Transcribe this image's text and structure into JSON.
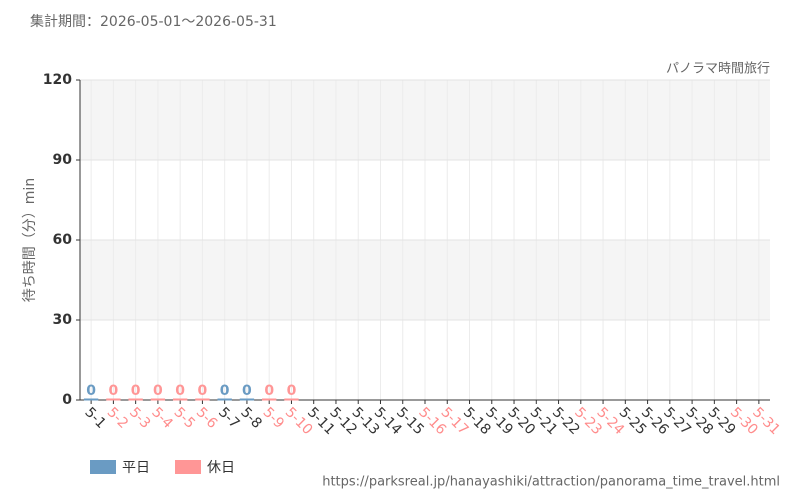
{
  "chart_data": {
    "type": "bar",
    "title": "集計期間：2026-05-01～2026-05-31",
    "subtitle": "パノラマ時間旅行",
    "y_label": "待ち時間（分）min",
    "source": "https://parksreal.jp/hanayashiki/attraction/panorama_time_travel.html",
    "categories": [
      "5-1",
      "5-2",
      "5-3",
      "5-4",
      "5-5",
      "5-6",
      "5-7",
      "5-8",
      "5-9",
      "5-10",
      "5-11",
      "5-12",
      "5-13",
      "5-14",
      "5-15",
      "5-16",
      "5-17",
      "5-18",
      "5-19",
      "5-20",
      "5-21",
      "5-22",
      "5-23",
      "5-24",
      "5-25",
      "5-26",
      "5-27",
      "5-28",
      "5-29",
      "5-30",
      "5-31"
    ],
    "category_colors": [
      "#333333",
      "#ff8c8c",
      "#ff8c8c",
      "#ff8c8c",
      "#ff8c8c",
      "#ff8c8c",
      "#333333",
      "#333333",
      "#ff8c8c",
      "#ff8c8c",
      "#333333",
      "#333333",
      "#333333",
      "#333333",
      "#333333",
      "#ff8c8c",
      "#ff8c8c",
      "#333333",
      "#333333",
      "#333333",
      "#333333",
      "#333333",
      "#ff8c8c",
      "#ff8c8c",
      "#333333",
      "#333333",
      "#333333",
      "#333333",
      "#333333",
      "#ff8c8c",
      "#ff8c8c"
    ],
    "series": [
      {
        "name": "平日",
        "color": "#6a9bc3",
        "values": [
          0,
          null,
          null,
          null,
          null,
          null,
          0,
          0,
          null,
          null,
          null,
          null,
          null,
          null,
          null,
          null,
          null,
          null,
          null,
          null,
          null,
          null,
          null,
          null,
          null,
          null,
          null,
          null,
          null,
          null,
          null
        ]
      },
      {
        "name": "休日",
        "color": "#ff9696",
        "values": [
          null,
          0,
          0,
          0,
          0,
          0,
          null,
          null,
          0,
          0,
          null,
          null,
          null,
          null,
          null,
          null,
          null,
          null,
          null,
          null,
          null,
          null,
          null,
          null,
          null,
          null,
          null,
          null,
          null,
          null,
          null
        ]
      }
    ],
    "ylim": [
      0,
      120
    ],
    "yticks": [
      0,
      30,
      60,
      90,
      120
    ],
    "grid": true
  }
}
